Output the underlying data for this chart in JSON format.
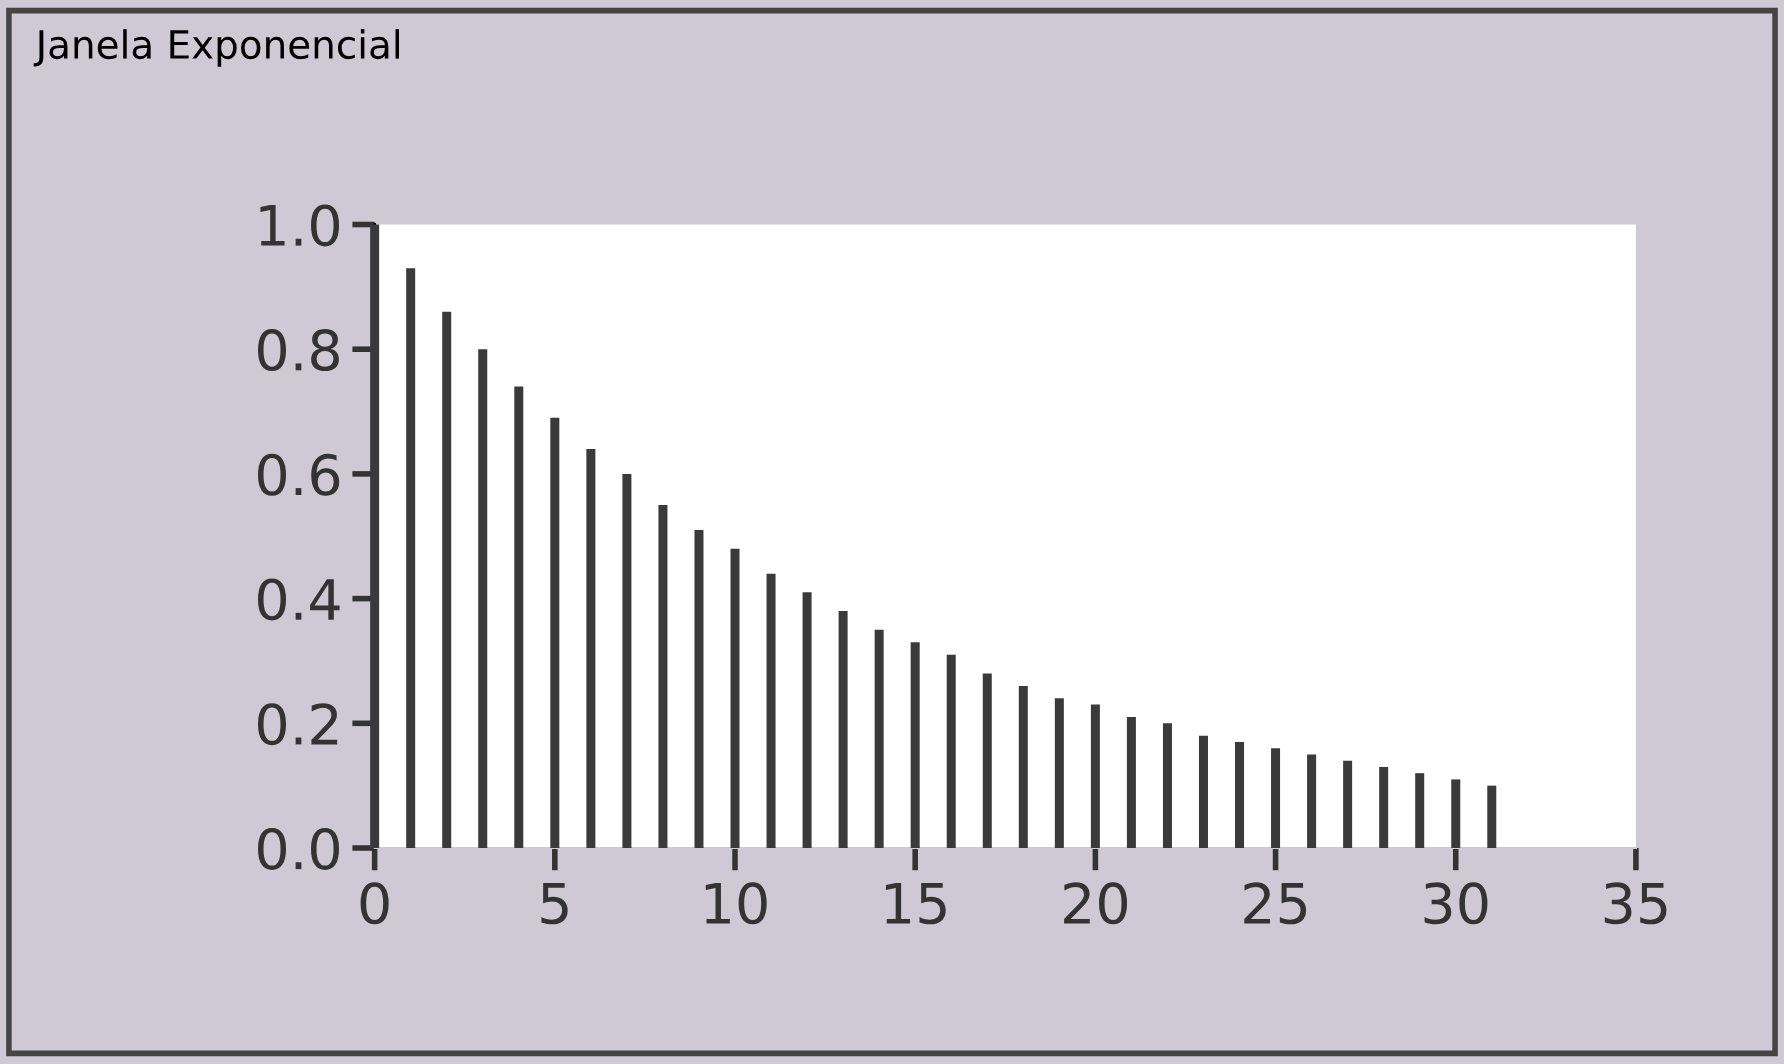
{
  "chart_data": {
    "type": "bar",
    "title": "Janela Exponencial",
    "x": [
      0,
      1,
      2,
      3,
      4,
      5,
      6,
      7,
      8,
      9,
      10,
      11,
      12,
      13,
      14,
      15,
      16,
      17,
      18,
      19,
      20,
      21,
      22,
      23,
      24,
      25,
      26,
      27,
      28,
      29,
      30,
      31
    ],
    "values": [
      1.0,
      0.93,
      0.86,
      0.8,
      0.74,
      0.69,
      0.64,
      0.6,
      0.55,
      0.51,
      0.48,
      0.44,
      0.41,
      0.38,
      0.35,
      0.33,
      0.31,
      0.28,
      0.26,
      0.24,
      0.23,
      0.21,
      0.2,
      0.18,
      0.17,
      0.16,
      0.15,
      0.14,
      0.13,
      0.12,
      0.11,
      0.1
    ],
    "color": "#3a3a3a",
    "xlim": [
      0,
      35
    ],
    "xticks": [
      0,
      5,
      10,
      15,
      20,
      25,
      30,
      35
    ],
    "ylim": [
      0,
      1.0
    ],
    "yticks": [
      {
        "value": 0,
        "label": "0.0"
      },
      {
        "value": 0.2,
        "label": "0.2"
      },
      {
        "value": 0.4,
        "label": "0.4"
      },
      {
        "value": 0.6,
        "label": "0.6"
      },
      {
        "value": 0.8,
        "label": "0.8"
      },
      {
        "value": 1.0,
        "label": "1.0"
      }
    ],
    "grid": false
  }
}
